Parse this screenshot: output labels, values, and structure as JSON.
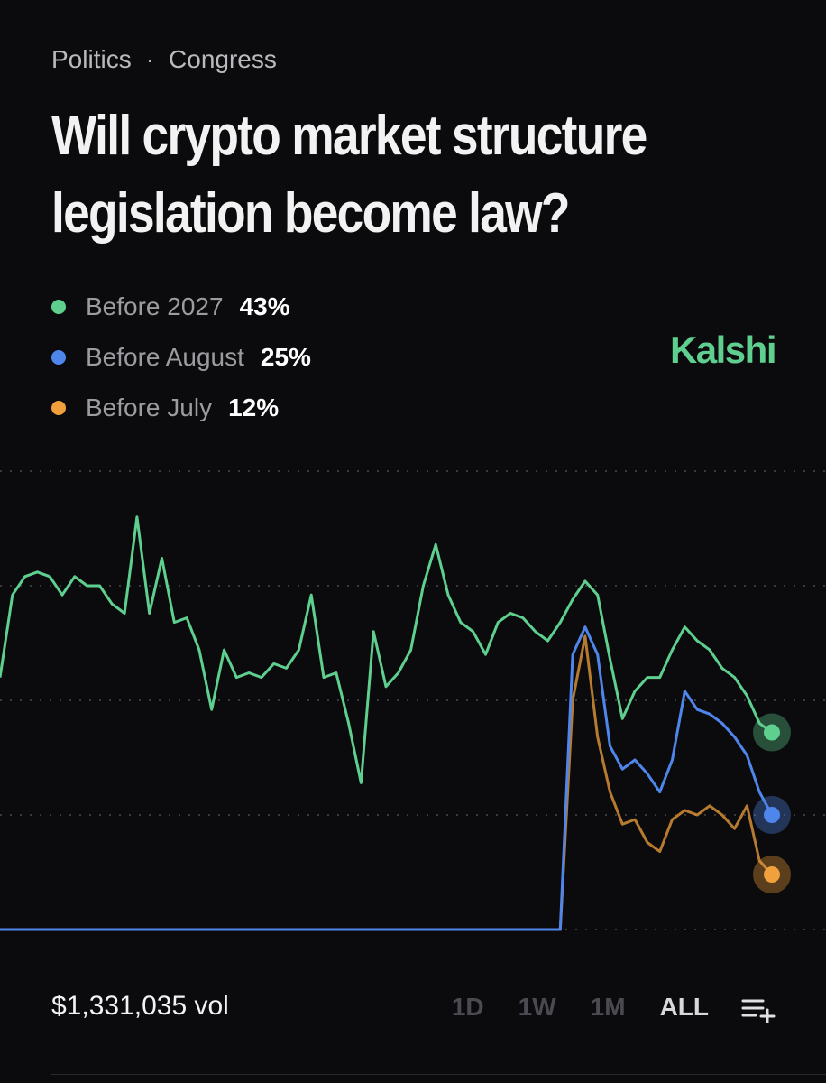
{
  "header": {
    "breadcrumb": [
      "Politics",
      "Congress"
    ],
    "title": "Will crypto market structure legislation become law?",
    "brand": "Kalshi"
  },
  "chart_data": {
    "type": "line",
    "ylim": [
      0,
      100
    ],
    "yticks": [
      0,
      25,
      50,
      75,
      100
    ],
    "grid": true,
    "series": [
      {
        "name": "Before 2027",
        "color": "#5fcf8f",
        "last_label": "43%",
        "values": [
          55,
          73,
          77,
          78,
          77,
          73,
          77,
          75,
          75,
          71,
          69,
          90,
          69,
          81,
          67,
          68,
          61,
          48,
          61,
          55,
          56,
          55,
          58,
          57,
          61,
          73,
          55,
          56,
          45,
          32,
          65,
          53,
          56,
          61,
          75,
          84,
          73,
          67,
          65,
          60,
          67,
          69,
          68,
          65,
          63,
          67,
          72,
          76,
          73,
          59,
          46,
          52,
          55,
          55,
          61,
          66,
          63,
          61,
          57,
          55,
          51,
          45,
          43
        ]
      },
      {
        "name": "Before August",
        "color": "#4f86ec",
        "last_label": "25%",
        "values": [
          0,
          0,
          0,
          0,
          0,
          0,
          0,
          0,
          0,
          0,
          0,
          0,
          0,
          0,
          0,
          0,
          0,
          0,
          0,
          0,
          0,
          0,
          0,
          0,
          0,
          0,
          0,
          0,
          0,
          0,
          0,
          0,
          0,
          0,
          0,
          0,
          0,
          0,
          0,
          0,
          0,
          0,
          0,
          0,
          0,
          0,
          60,
          66,
          60,
          40,
          35,
          37,
          34,
          30,
          37,
          52,
          48,
          47,
          45,
          42,
          38,
          30,
          25
        ]
      },
      {
        "name": "Before July",
        "color": "#f0a03c",
        "last_label": "12%",
        "values": [
          0,
          0,
          0,
          0,
          0,
          0,
          0,
          0,
          0,
          0,
          0,
          0,
          0,
          0,
          0,
          0,
          0,
          0,
          0,
          0,
          0,
          0,
          0,
          0,
          0,
          0,
          0,
          0,
          0,
          0,
          0,
          0,
          0,
          0,
          0,
          0,
          0,
          0,
          0,
          0,
          0,
          0,
          0,
          0,
          0,
          0,
          50,
          64,
          42,
          30,
          23,
          24,
          19,
          17,
          24,
          26,
          25,
          27,
          25,
          22,
          27,
          15,
          12
        ]
      }
    ]
  },
  "footer": {
    "volume": "$1,331,035 vol",
    "ranges": [
      "1D",
      "1W",
      "1M",
      "ALL"
    ],
    "active_range": "ALL"
  }
}
